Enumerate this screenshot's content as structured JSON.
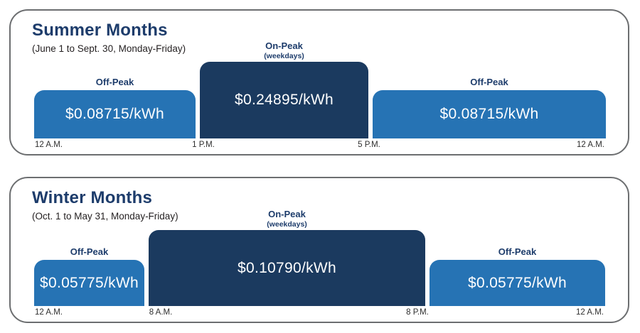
{
  "colors": {
    "on_peak_bar": "#1b3a5f",
    "off_peak_bar": "#2673b4",
    "heading_navy": "#1d3c6b",
    "panel_border": "#6c6e70",
    "rate_text": "#ffffff",
    "tick_text": "#2e2e2e"
  },
  "charts": [
    {
      "title": "Summer Months",
      "subtitle": "(June 1 to Sept. 30, Monday-Friday)",
      "segments": [
        {
          "label": "Off-Peak",
          "sublabel": "",
          "rate": "$0.08715/kWh"
        },
        {
          "label": "On-Peak",
          "sublabel": "(weekdays)",
          "rate": "$0.24895/kWh"
        },
        {
          "label": "Off-Peak",
          "sublabel": "",
          "rate": "$0.08715/kWh"
        }
      ],
      "ticks": [
        "12 A.M.",
        "1 P.M.",
        "5 P.M.",
        "12 A.M."
      ]
    },
    {
      "title": "Winter Months",
      "subtitle": "(Oct. 1 to May 31, Monday-Friday)",
      "segments": [
        {
          "label": "Off-Peak",
          "sublabel": "",
          "rate": "$0.05775/kWh"
        },
        {
          "label": "On-Peak",
          "sublabel": "(weekdays)",
          "rate": "$0.10790/kWh"
        },
        {
          "label": "Off-Peak",
          "sublabel": "",
          "rate": "$0.05775/kWh"
        }
      ],
      "ticks": [
        "12 A.M.",
        "8 A.M.",
        "8 P.M.",
        "12 A.M."
      ]
    }
  ],
  "chart_data": [
    {
      "type": "bar",
      "title": "Summer Months",
      "subtitle": "(June 1 to Sept. 30, Monday-Friday)",
      "x_ticks": [
        "12 A.M.",
        "1 P.M.",
        "5 P.M.",
        "12 A.M."
      ],
      "segments": [
        {
          "period": "Off-Peak",
          "start": "12 A.M.",
          "end": "1 P.M.",
          "rate_usd_per_kwh": 0.08715,
          "rate_label": "$0.08715/kWh"
        },
        {
          "period": "On-Peak (weekdays)",
          "start": "1 P.M.",
          "end": "5 P.M.",
          "rate_usd_per_kwh": 0.24895,
          "rate_label": "$0.24895/kWh"
        },
        {
          "period": "Off-Peak",
          "start": "5 P.M.",
          "end": "12 A.M.",
          "rate_usd_per_kwh": 0.08715,
          "rate_label": "$0.08715/kWh"
        }
      ],
      "legend_position": "none",
      "grid": false
    },
    {
      "type": "bar",
      "title": "Winter Months",
      "subtitle": "(Oct. 1 to May 31, Monday-Friday)",
      "x_ticks": [
        "12 A.M.",
        "8 A.M.",
        "8 P.M.",
        "12 A.M."
      ],
      "segments": [
        {
          "period": "Off-Peak",
          "start": "12 A.M.",
          "end": "8 A.M.",
          "rate_usd_per_kwh": 0.05775,
          "rate_label": "$0.05775/kWh"
        },
        {
          "period": "On-Peak (weekdays)",
          "start": "8 A.M.",
          "end": "8 P.M.",
          "rate_usd_per_kwh": 0.1079,
          "rate_label": "$0.10790/kWh"
        },
        {
          "period": "Off-Peak",
          "start": "8 P.M.",
          "end": "12 A.M.",
          "rate_usd_per_kwh": 0.05775,
          "rate_label": "$0.05775/kWh"
        }
      ],
      "legend_position": "none",
      "grid": false
    }
  ]
}
